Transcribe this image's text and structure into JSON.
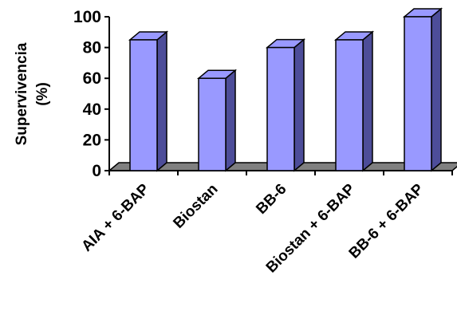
{
  "chart_data": {
    "type": "bar",
    "categories": [
      "AIA + 6-BAP",
      "Biostan",
      "BB-6",
      "Biostan + 6-BAP",
      "BB-6 + 6-BAP"
    ],
    "values": [
      85,
      60,
      80,
      85,
      100
    ],
    "ylabel_line1": "Supervivencia",
    "ylabel_line2": "(%)",
    "ylim": [
      0,
      100
    ],
    "yticks": [
      "0",
      "20",
      "40",
      "60",
      "80",
      "100"
    ],
    "ytick_values": [
      0,
      20,
      40,
      60,
      80,
      100
    ],
    "grid": false,
    "style": "3d",
    "colors": {
      "bar_front": "#9999ff",
      "bar_side": "#4d4d99",
      "bar_top": "#9999ff",
      "floor": "#808080"
    }
  }
}
